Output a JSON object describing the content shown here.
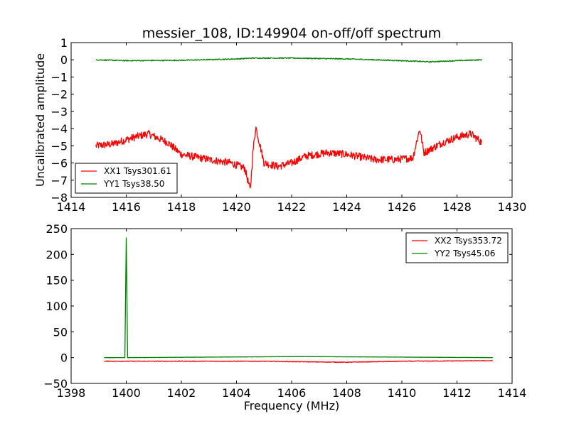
{
  "chart_data": [
    {
      "type": "line",
      "title": "messier_108, ID:149904 on-off/off spectrum",
      "xlabel": "",
      "ylabel": "Uncalibrated amplitude",
      "xlim": [
        1414,
        1430
      ],
      "ylim": [
        -8,
        1
      ],
      "xticks": [
        "1414",
        "1416",
        "1418",
        "1420",
        "1422",
        "1424",
        "1426",
        "1428",
        "1430"
      ],
      "yticks": [
        "1",
        "0",
        "−1",
        "−2",
        "−3",
        "−4",
        "−5",
        "−6",
        "−7",
        "−8"
      ],
      "grid": false,
      "legend": "lower-left",
      "series": [
        {
          "name": "XX1 Tsys301.61",
          "color": "#ff0000",
          "x": [
            1414.9,
            1415.5,
            1416.3,
            1416.8,
            1417.5,
            1418.0,
            1419.0,
            1419.8,
            1420.3,
            1420.5,
            1420.6,
            1420.7,
            1421.0,
            1421.5,
            1422.0,
            1422.5,
            1423.3,
            1424.0,
            1425.0,
            1425.8,
            1426.4,
            1426.65,
            1426.8,
            1427.5,
            1428.0,
            1428.5,
            1428.9
          ],
          "y": [
            -5.0,
            -4.9,
            -4.5,
            -4.3,
            -4.8,
            -5.5,
            -5.8,
            -6.0,
            -6.3,
            -7.6,
            -5.3,
            -3.9,
            -6.0,
            -6.2,
            -6.0,
            -5.6,
            -5.4,
            -5.5,
            -5.8,
            -5.8,
            -5.7,
            -4.0,
            -5.4,
            -4.8,
            -4.5,
            -4.3,
            -4.8
          ]
        },
        {
          "name": "YY1 Tsys38.50",
          "color": "#008000",
          "x": [
            1414.9,
            1416.0,
            1418.0,
            1420.0,
            1420.6,
            1422.0,
            1424.0,
            1426.0,
            1427.0,
            1428.0,
            1428.9
          ],
          "y": [
            0.0,
            -0.05,
            -0.03,
            0.05,
            0.1,
            0.1,
            0.05,
            -0.05,
            -0.12,
            -0.05,
            0.0
          ]
        }
      ]
    },
    {
      "type": "line",
      "title": "",
      "xlabel": "Frequency (MHz)",
      "ylabel": "",
      "xlim": [
        1398,
        1414
      ],
      "ylim": [
        -50,
        250
      ],
      "xticks": [
        "1398",
        "1400",
        "1402",
        "1404",
        "1406",
        "1408",
        "1410",
        "1412",
        "1414"
      ],
      "yticks": [
        "250",
        "200",
        "150",
        "100",
        "50",
        "0",
        "−50"
      ],
      "grid": false,
      "legend": "upper-right",
      "series": [
        {
          "name": "XX2 Tsys353.72",
          "color": "#ff0000",
          "x": [
            1399.2,
            1402.0,
            1405.0,
            1406.3,
            1408.0,
            1410.0,
            1413.3
          ],
          "y": [
            -7,
            -7,
            -7,
            -8,
            -9,
            -7,
            -6
          ]
        },
        {
          "name": "YY2 Tsys45.06",
          "color": "#008000",
          "x": [
            1399.2,
            1399.95,
            1400.0,
            1400.05,
            1406.3,
            1409.9,
            1413.3
          ],
          "y": [
            0,
            0,
            232,
            0,
            2,
            1,
            0
          ]
        }
      ]
    }
  ]
}
